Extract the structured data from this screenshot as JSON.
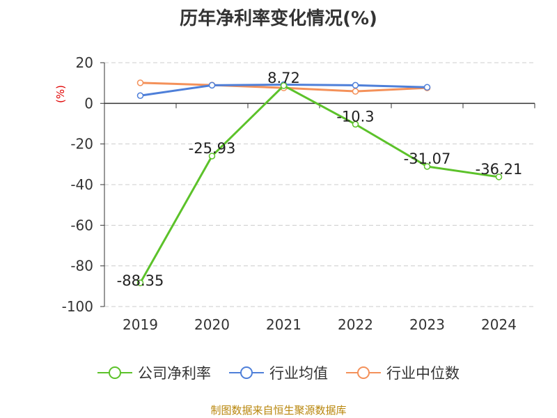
{
  "chart_data": {
    "type": "line",
    "title": "历年净利率变化情况(%)",
    "ylabel": "(%)",
    "categories": [
      "2019",
      "2020",
      "2021",
      "2022",
      "2023",
      "2024"
    ],
    "ylim": [
      -100,
      20
    ],
    "yticks": [
      20,
      0,
      -20,
      -40,
      -60,
      -80,
      -100
    ],
    "grid": true,
    "legend_position": "bottom",
    "series": [
      {
        "name": "公司净利率",
        "color": "#5cc22a",
        "values": [
          -88.35,
          -25.93,
          8.72,
          -10.3,
          -31.07,
          -36.21
        ],
        "labels": [
          "-88.35",
          "-25.93",
          "8.72",
          "-10.3",
          "-31.07",
          "-36.21"
        ]
      },
      {
        "name": "行业均值",
        "color": "#4e7fd9",
        "values": [
          3.8,
          8.9,
          9.2,
          8.9,
          7.9,
          null
        ]
      },
      {
        "name": "行业中位数",
        "color": "#f4915a",
        "values": [
          10.1,
          9.0,
          7.6,
          5.9,
          7.6,
          null
        ]
      }
    ]
  },
  "source": "制图数据来自恒生聚源数据库"
}
